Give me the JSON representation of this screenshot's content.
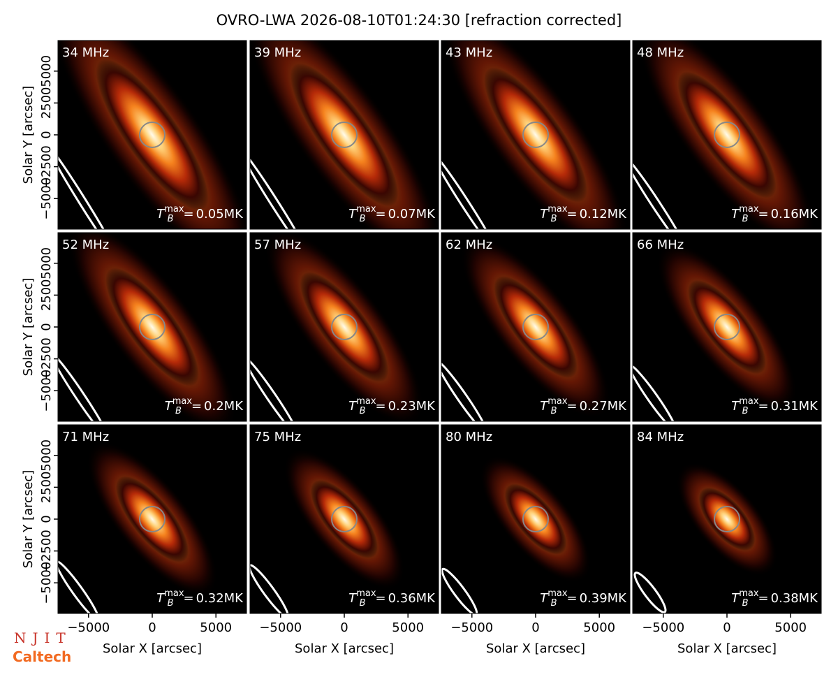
{
  "chart_data": {
    "type": "image_grid",
    "title": "OVRO-LWA 2026-08-10T01:24:30 [refraction corrected]",
    "xlabel": "Solar X [arcsec]",
    "ylabel": "Solar Y [arcsec]",
    "xlim": [
      -7400,
      7400
    ],
    "ylim": [
      -7400,
      7400
    ],
    "xticks": [
      {
        "value": -5000,
        "label": "−5000"
      },
      0,
      5000
    ],
    "yticks": [
      {
        "value": -5000,
        "label": "−5000"
      },
      {
        "value": -2500,
        "label": "−2500"
      },
      0,
      2500,
      5000
    ],
    "tb_symbol": {
      "base": "T",
      "sub": "B",
      "sup": "max",
      "eq": "="
    },
    "panels": [
      {
        "freq": "34 MHz",
        "tmax": "0.05MK"
      },
      {
        "freq": "39 MHz",
        "tmax": "0.07MK"
      },
      {
        "freq": "43 MHz",
        "tmax": "0.12MK"
      },
      {
        "freq": "48 MHz",
        "tmax": "0.16MK"
      },
      {
        "freq": "52 MHz",
        "tmax": "0.2MK"
      },
      {
        "freq": "57 MHz",
        "tmax": "0.23MK"
      },
      {
        "freq": "62 MHz",
        "tmax": "0.27MK"
      },
      {
        "freq": "66 MHz",
        "tmax": "0.31MK"
      },
      {
        "freq": "71 MHz",
        "tmax": "0.32MK"
      },
      {
        "freq": "75 MHz",
        "tmax": "0.36MK"
      },
      {
        "freq": "80 MHz",
        "tmax": "0.39MK"
      },
      {
        "freq": "84 MHz",
        "tmax": "0.38MK"
      }
    ],
    "logos": [
      "NJIT",
      "Caltech"
    ]
  }
}
